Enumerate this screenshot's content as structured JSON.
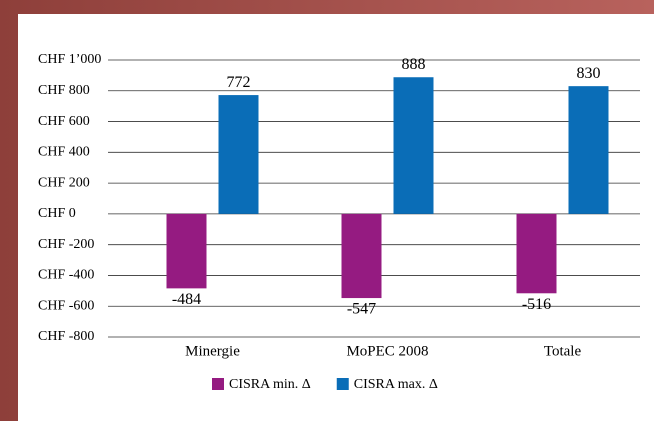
{
  "chart_data": {
    "type": "bar",
    "categories": [
      "Minergie",
      "MoPEC 2008",
      "Totale"
    ],
    "series": [
      {
        "name": "CISRA min. Δ",
        "color": "#951b81",
        "values": [
          -484,
          -547,
          -516
        ]
      },
      {
        "name": "CISRA max. Δ",
        "color": "#0a6db7",
        "values": [
          772,
          888,
          830
        ]
      }
    ],
    "ylim": [
      -800,
      1000
    ],
    "yticks": [
      {
        "value": -800,
        "label": "CHF -800"
      },
      {
        "value": -600,
        "label": "CHF -600"
      },
      {
        "value": -400,
        "label": "CHF -400"
      },
      {
        "value": -200,
        "label": "CHF -200"
      },
      {
        "value": 0,
        "label": "CHF 0"
      },
      {
        "value": 200,
        "label": "CHF 200"
      },
      {
        "value": 400,
        "label": "CHF 400"
      },
      {
        "value": 600,
        "label": "CHF 600"
      },
      {
        "value": 800,
        "label": "CHF 800"
      },
      {
        "value": 1000,
        "label": "CHF 1’000"
      }
    ],
    "grid": true,
    "legend": "bottom"
  }
}
